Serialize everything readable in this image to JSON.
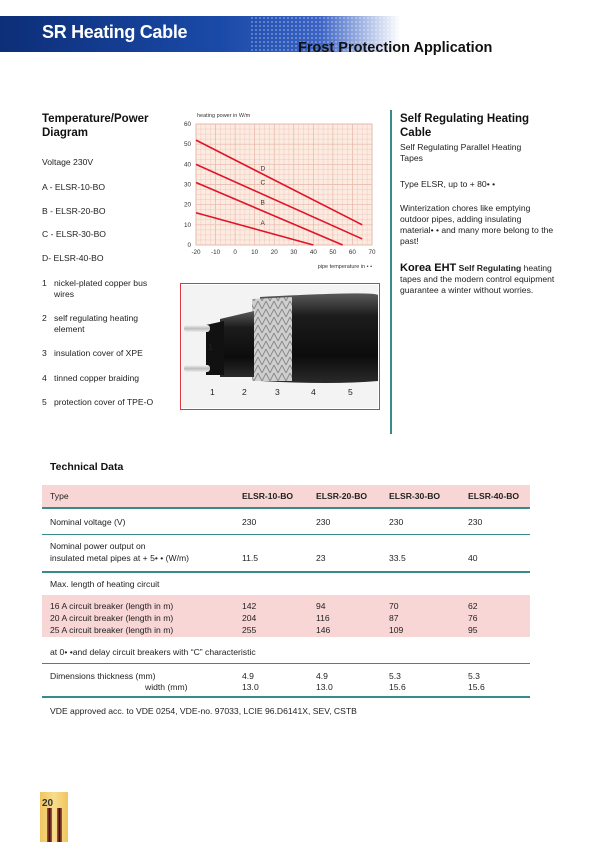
{
  "header": {
    "title": "SR Heating Cable",
    "subtitle": "Frost Protection Application"
  },
  "left": {
    "heading": "Temperature/Power Diagram",
    "voltage": "Voltage 230V",
    "models": [
      "A - ELSR-10-BO",
      "B - ELSR-20-BO",
      "C - ELSR-30-BO",
      "D- ELSR-40-BO"
    ],
    "parts": [
      {
        "num": "1",
        "text": "nickel-plated copper bus wires"
      },
      {
        "num": "2",
        "text": "self regulating heating element"
      },
      {
        "num": "3",
        "text": "insulation cover of XPE"
      },
      {
        "num": "4",
        "text": "tinned copper braiding"
      },
      {
        "num": "5",
        "text": "protection cover of TPE-O"
      }
    ]
  },
  "chart_data": {
    "type": "line",
    "ylabel": "heating power in W/m",
    "xlabel": "pipe temperature in • •",
    "xlim": [
      -20,
      70
    ],
    "ylim": [
      0,
      60
    ],
    "xticks": [
      "-20",
      "-10",
      "0",
      "10",
      "20",
      "30",
      "40",
      "50",
      "60",
      "70"
    ],
    "yticks": [
      "0",
      "10",
      "20",
      "30",
      "40",
      "50",
      "60"
    ],
    "series": [
      {
        "name": "A",
        "x": [
          -20,
          40
        ],
        "y": [
          16,
          0
        ]
      },
      {
        "name": "B",
        "x": [
          -20,
          55
        ],
        "y": [
          31,
          0
        ]
      },
      {
        "name": "C",
        "x": [
          -20,
          65
        ],
        "y": [
          40,
          3
        ]
      },
      {
        "name": "D",
        "x": [
          -20,
          65
        ],
        "y": [
          52,
          10
        ]
      }
    ],
    "label_pos": [
      {
        "name": "A",
        "x": 13,
        "y": 11
      },
      {
        "name": "B",
        "x": 13,
        "y": 21
      },
      {
        "name": "C",
        "x": 13,
        "y": 31
      },
      {
        "name": "D",
        "x": 13,
        "y": 38
      }
    ],
    "colors": {
      "line": "#e0142a",
      "grid": "#e8b4a8",
      "bg": "#fcebe0"
    }
  },
  "photo": {
    "callouts": [
      "1",
      "2",
      "3",
      "4",
      "5"
    ],
    "top_callout": "1"
  },
  "right": {
    "heading": "Self Regulating Heating Cable",
    "sub": "Self Regulating Parallel Heating Tapes",
    "type_line": "Type ELSR, up to + 80• •",
    "para": "Winterization chores like emptying outdoor pipes, adding insulating material• • and many more belong to the past!",
    "korea_brand": "Korea EHT",
    "korea_bold": "Self Regulating",
    "korea_text": "heating tapes and the modern control equipment guarantee a winter without worries."
  },
  "tech": {
    "heading": "Technical Data",
    "headers": [
      "Type",
      "ELSR-10-BO",
      "ELSR-20-BO",
      "ELSR-30-BO",
      "ELSR-40-BO"
    ],
    "voltage": {
      "label": "Nominal voltage (V)",
      "values": [
        "230",
        "230",
        "230",
        "230"
      ]
    },
    "power": {
      "label1": "Nominal power output on",
      "label2": "insulated metal pipes at + 5• • (W/m)",
      "values": [
        "11.5",
        "23",
        "33.5",
        "40"
      ]
    },
    "maxlen": "Max. length of heating circuit",
    "breakers": [
      {
        "label": "16 A circuit breaker (length in m)",
        "values": [
          "142",
          "94",
          "70",
          "62"
        ]
      },
      {
        "label": "20 A circuit breaker (length in m)",
        "values": [
          "204",
          "116",
          "87",
          "76"
        ]
      },
      {
        "label": "25 A circuit breaker (length in m)",
        "values": [
          "255",
          "146",
          "109",
          "95"
        ]
      }
    ],
    "note": "at 0• •and delay circuit breakers with “C” characteristic",
    "dims": {
      "label1": "Dimensions thickness (mm)",
      "label2": "width (mm)",
      "thick": [
        "4.9",
        "4.9",
        "5.3",
        "5.3"
      ],
      "width": [
        "13.0",
        "13.0",
        "15.6",
        "15.6"
      ]
    },
    "footer": "VDE approved acc. to VDE 0254, VDE-no. 97033, LCIE 96.D6141X, SEV, CSTB"
  },
  "page_number": "20"
}
